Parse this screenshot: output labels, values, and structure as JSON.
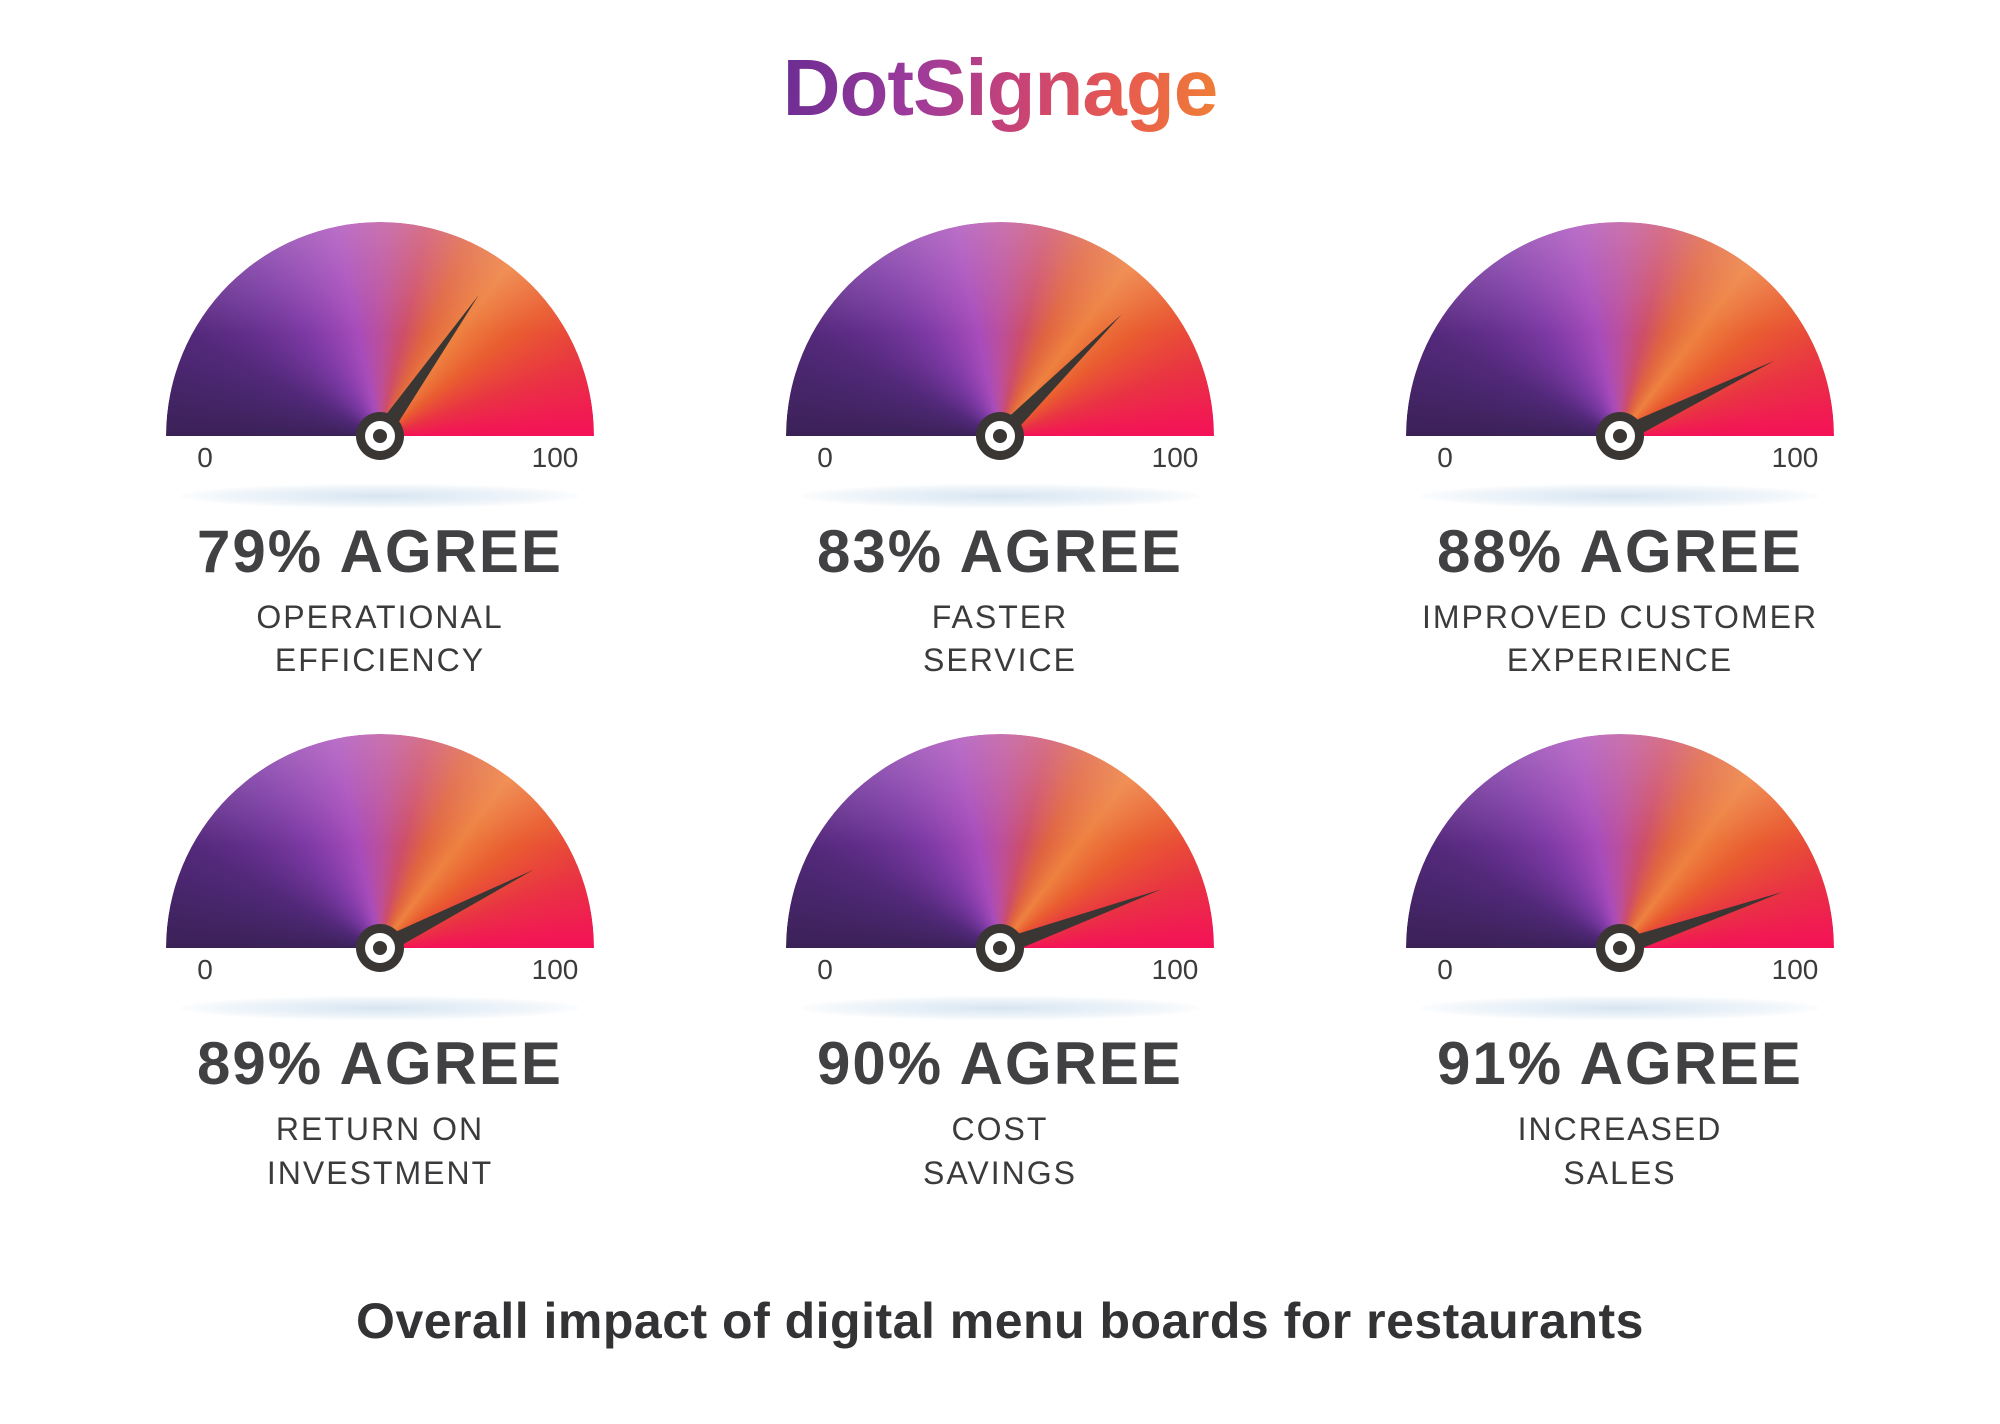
{
  "logo": {
    "text": "DotSignage",
    "gradient": [
      "#6a2c92",
      "#9c3a9c",
      "#c84376",
      "#e85b4e",
      "#f08035"
    ]
  },
  "chart_data": {
    "type": "gauge",
    "title": "Overall impact of digital menu boards for restaurants",
    "layout": {
      "rows": 2,
      "cols": 3,
      "legend": "none",
      "grid": "off"
    },
    "axis": {
      "min": 0,
      "max": 100,
      "min_label": "0",
      "max_label": "100"
    },
    "colors": {
      "arc_gradient": [
        "#3a2157",
        "#53297b",
        "#7e3aa6",
        "#a84cbb",
        "#bc4f9b",
        "#ce4e68",
        "#e06440",
        "#ee8140",
        "#e95c30",
        "#e93343",
        "#f41158"
      ],
      "needle": "#3a3633",
      "text": "#3b3b3d",
      "shadow": "#c6daec"
    },
    "gauges": [
      {
        "value": 79,
        "headline": "79% AGREE",
        "label_lines": [
          "OPERATIONAL",
          "EFFICIENCY"
        ],
        "needle_angle_deg": 55
      },
      {
        "value": 83,
        "headline": "83% AGREE",
        "label_lines": [
          "FASTER",
          "SERVICE"
        ],
        "needle_angle_deg": 45
      },
      {
        "value": 88,
        "headline": "88% AGREE",
        "label_lines": [
          "IMPROVED CUSTOMER",
          "EXPERIENCE"
        ],
        "needle_angle_deg": 26
      },
      {
        "value": 89,
        "headline": "89% AGREE",
        "label_lines": [
          "RETURN ON",
          "INVESTMENT"
        ],
        "needle_angle_deg": 27
      },
      {
        "value": 90,
        "headline": "90% AGREE",
        "label_lines": [
          "COST",
          "SAVINGS"
        ],
        "needle_angle_deg": 20
      },
      {
        "value": 91,
        "headline": "91% AGREE",
        "label_lines": [
          "INCREASED",
          "SALES"
        ],
        "needle_angle_deg": 19
      }
    ]
  }
}
